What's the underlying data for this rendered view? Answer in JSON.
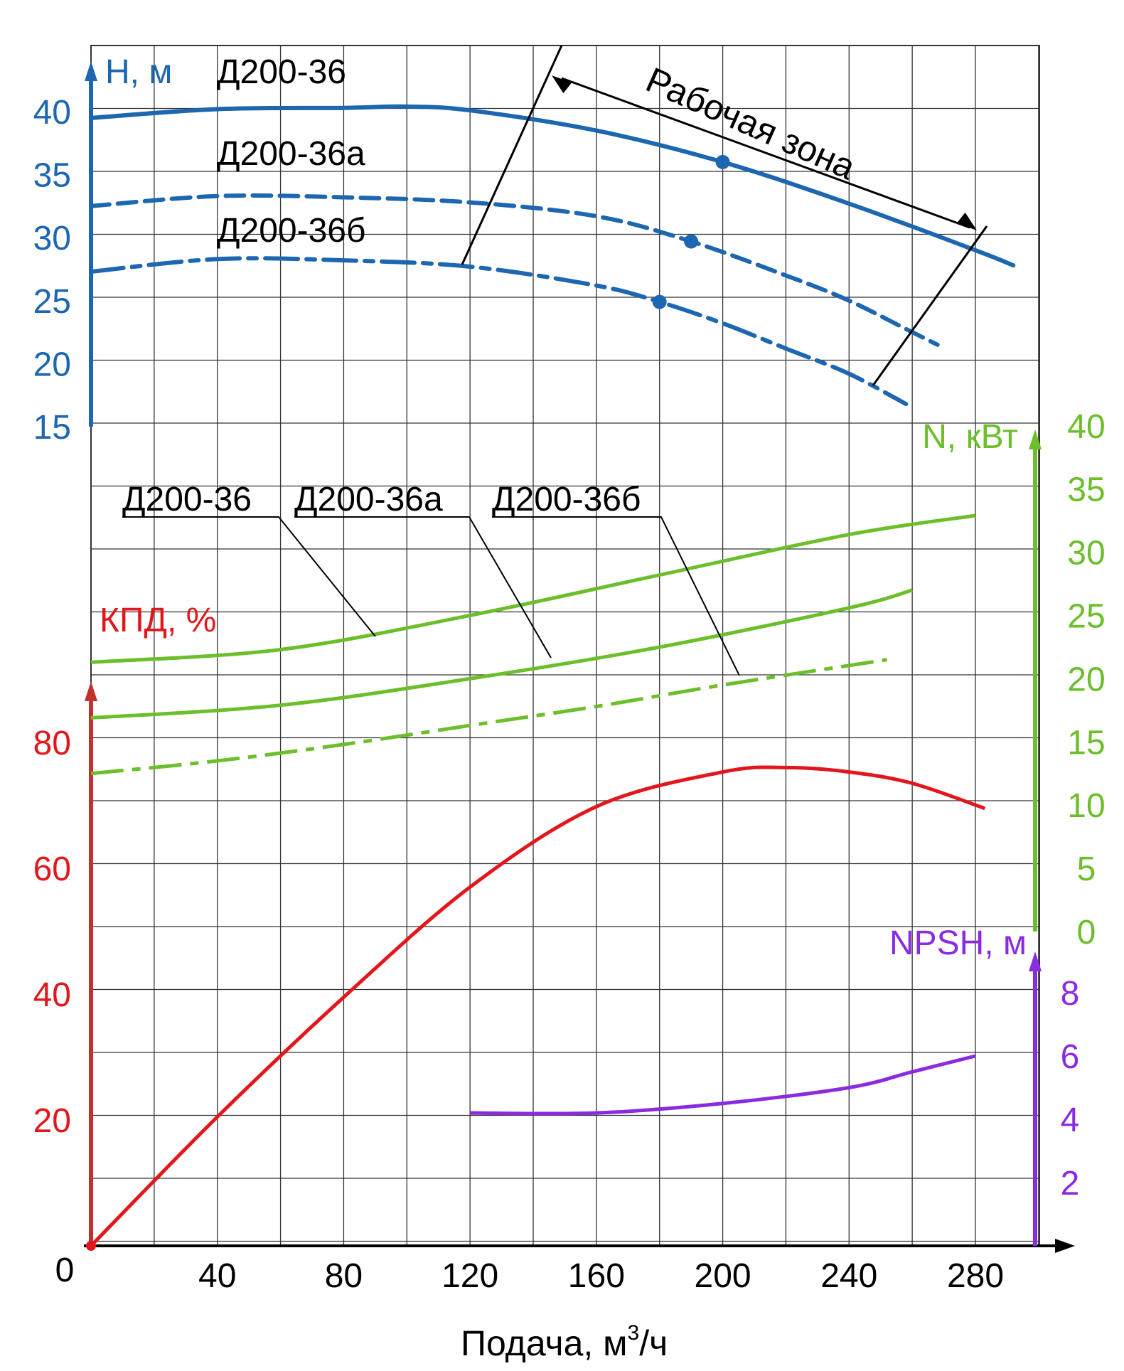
{
  "colors": {
    "head": "#1d66b0",
    "efficiency": "#e3161b",
    "efficiency_axis": "#c4302b",
    "power": "#6cbe2b",
    "npsh": "#8a2be2",
    "ink": "#000000",
    "grid": "#333333"
  },
  "chart_data": {
    "type": "line",
    "xlabel_main": "Подача, м",
    "xlabel_sup": "3",
    "xlabel_tail": "/ч",
    "x_zero_label": "0",
    "x_ticks": [
      "40",
      "80",
      "120",
      "160",
      "200",
      "240",
      "280"
    ],
    "xlim": [
      0,
      300
    ],
    "grid": true,
    "axes": {
      "head": {
        "label": "Н, м",
        "ticks": [
          "15",
          "20",
          "25",
          "30",
          "35",
          "40"
        ],
        "range": [
          15,
          40
        ]
      },
      "efficiency": {
        "label": "КПД, %",
        "ticks": [
          "20",
          "40",
          "60",
          "80"
        ],
        "range": [
          0,
          80
        ]
      },
      "power": {
        "label": "N, кВт",
        "ticks": [
          "0",
          "5",
          "10",
          "15",
          "20",
          "25",
          "30",
          "35",
          "40"
        ],
        "range": [
          0,
          40
        ]
      },
      "npsh": {
        "label": "NPSH, м",
        "ticks": [
          "2",
          "4",
          "6",
          "8"
        ],
        "range": [
          0,
          8
        ]
      }
    },
    "head_series": [
      {
        "name": "Д200-36",
        "style": "solid",
        "x": [
          0,
          40,
          80,
          100,
          120,
          160,
          200,
          240,
          280,
          292
        ],
        "y": [
          39.5,
          40.2,
          40.3,
          40.4,
          40.1,
          38.5,
          36,
          32.7,
          29,
          27.8
        ],
        "marker": [
          200,
          36
        ]
      },
      {
        "name": "Д200-36а",
        "style": "dashed",
        "x": [
          0,
          40,
          80,
          120,
          160,
          190,
          220,
          240,
          260,
          268
        ],
        "y": [
          32.5,
          33.3,
          33.2,
          32.8,
          31.7,
          29.7,
          27,
          25,
          22.5,
          21.5
        ],
        "marker": [
          190,
          29.7
        ]
      },
      {
        "name": "Д200-36б",
        "style": "dashdot",
        "x": [
          0,
          40,
          80,
          120,
          160,
          180,
          200,
          220,
          240,
          258
        ],
        "y": [
          27.3,
          28.3,
          28.2,
          27.7,
          26.2,
          24.9,
          23.2,
          21.2,
          19.2,
          16.8
        ],
        "marker": [
          180,
          24.9
        ]
      }
    ],
    "power_series": [
      {
        "name": "Д200-36",
        "style": "solid",
        "x": [
          0,
          60,
          120,
          180,
          240,
          280
        ],
        "y": [
          21.3,
          22.3,
          25,
          28.2,
          31.4,
          32.9
        ]
      },
      {
        "name": "Д200-36а",
        "style": "solid",
        "x": [
          0,
          60,
          120,
          180,
          240,
          260
        ],
        "y": [
          16.9,
          17.9,
          20,
          22.5,
          25.6,
          27
        ]
      },
      {
        "name": "Д200-36б",
        "style": "dashdot",
        "x": [
          0,
          40,
          80,
          120,
          160,
          200,
          252
        ],
        "y": [
          12.5,
          13.5,
          14.8,
          16.3,
          17.8,
          19.5,
          21.5
        ]
      }
    ],
    "efficiency_series": {
      "x": [
        0,
        40,
        80,
        120,
        160,
        200,
        220,
        240,
        260,
        283
      ],
      "y": [
        0,
        20.5,
        39.5,
        57,
        69.8,
        75.3,
        76,
        75.3,
        73.5,
        69.5
      ]
    },
    "npsh_series": {
      "x": [
        120,
        160,
        200,
        240,
        260,
        280
      ],
      "y": [
        4.2,
        4.2,
        4.5,
        5,
        5.5,
        6
      ]
    },
    "annotations": {
      "head_labels": [
        "Д200-36",
        "Д200-36а",
        "Д200-36б"
      ],
      "power_labels": [
        "Д200-36",
        "Д200-36а",
        "Д200-36б"
      ],
      "working_zone": "Рабочая зона"
    }
  }
}
